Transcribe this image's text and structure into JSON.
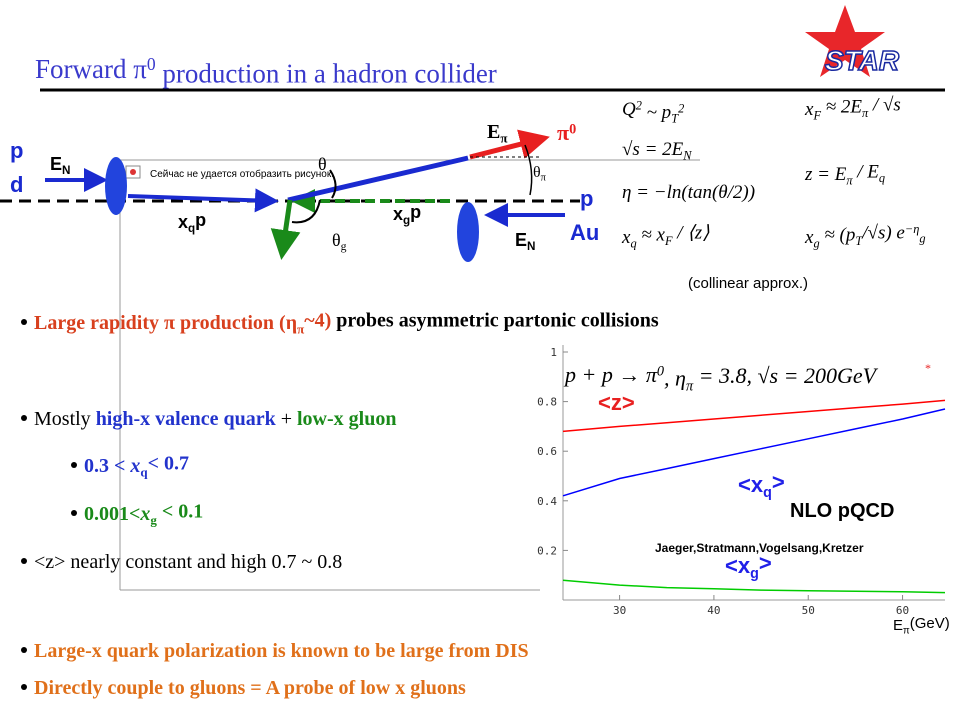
{
  "title": [
    {
      "text": "Forward π"
    },
    {
      "text": "0",
      "sup": true
    },
    {
      "text": " production in a hadron collider"
    }
  ],
  "logo": "STAR",
  "broken_image_text": "Сейчас не удается отобразить рисунок.",
  "diagram": {
    "p_left": "p",
    "d_left": "d",
    "e_n_left": [
      {
        "text": "E"
      },
      {
        "text": "N",
        "sub": true
      }
    ],
    "xq_p": [
      {
        "text": "x"
      },
      {
        "text": "q",
        "sub": true
      },
      {
        "text": "p"
      }
    ],
    "xg_p": [
      {
        "text": "x"
      },
      {
        "text": "g",
        "sub": true
      },
      {
        "text": "p"
      }
    ],
    "e_n_right": [
      {
        "text": "E"
      },
      {
        "text": "N",
        "sub": true
      }
    ],
    "p_right": "p",
    "au_right": "Au",
    "e_pi": [
      {
        "text": "E"
      },
      {
        "text": "π",
        "sub": true
      }
    ],
    "pi0": [
      {
        "text": "π"
      },
      {
        "text": "0",
        "sup": true
      }
    ],
    "theta_pi": [
      {
        "text": "θ"
      },
      {
        "text": "π",
        "sub": true
      }
    ],
    "theta": "θ",
    "theta_g": [
      {
        "text": "θ"
      },
      {
        "text": "g",
        "sub": true
      }
    ]
  },
  "formulas": [
    [
      {
        "text": "Q"
      },
      {
        "text": "2",
        "sup": true
      },
      {
        "text": " ~ p"
      },
      {
        "text": "T",
        "sub": true
      },
      {
        "text": "2",
        "sup": true
      }
    ],
    [
      {
        "text": "x"
      },
      {
        "text": "F",
        "sub": true
      },
      {
        "text": " ≈ 2E"
      },
      {
        "text": "π",
        "sub": true
      },
      {
        "text": " / √s"
      }
    ],
    [
      {
        "text": "√s = 2E"
      },
      {
        "text": "N",
        "sub": true
      }
    ],
    [
      {
        "text": "z = E"
      },
      {
        "text": "π",
        "sub": true
      },
      {
        "text": " / E"
      },
      {
        "text": "q",
        "sub": true
      }
    ],
    [
      {
        "text": "η = −ln(tan(θ/2))"
      }
    ],
    [
      {
        "text": "x"
      },
      {
        "text": "q",
        "sub": true
      },
      {
        "text": " ≈ x"
      },
      {
        "text": "F",
        "sub": true
      },
      {
        "text": " / ⟨z⟩"
      }
    ],
    [
      {
        "text": "x"
      },
      {
        "text": "g",
        "sub": true
      },
      {
        "text": " ≈ (p"
      },
      {
        "text": "T",
        "sub": true
      },
      {
        "text": "/√s) e"
      },
      {
        "text": "−η",
        "sup": true
      },
      {
        "text": "g",
        "sub": true
      }
    ]
  ],
  "collinear_note": "(collinear approx.)",
  "bullets": [
    [
      {
        "text": "Large rapidity π production (η",
        "bold": true,
        "color": "#d8401e"
      },
      {
        "text": "π",
        "sub": true,
        "bold": true,
        "color": "#d8401e"
      },
      {
        "text": "~4)",
        "bold": true,
        "color": "#d8401e"
      },
      {
        "text": " probes asymmetric partonic collisions",
        "bold": true
      }
    ],
    [
      {
        "text": "Mostly "
      },
      {
        "text": "high-x valence quark",
        "bold": true,
        "color": "#2233cc"
      },
      {
        "text": " + "
      },
      {
        "text": "low-x gluon",
        "bold": true,
        "color": "#1a8a1a"
      }
    ],
    [
      {
        "text": "0.3 < ",
        "bold": true,
        "color": "#2233cc"
      },
      {
        "text": "x",
        "bold": true,
        "italic": true,
        "color": "#2233cc"
      },
      {
        "text": "q",
        "sub": true,
        "bold": true,
        "color": "#2233cc"
      },
      {
        "text": "<  0.7",
        "bold": true,
        "color": "#2233cc"
      }
    ],
    [
      {
        "text": "0.001<",
        "bold": true,
        "color": "#1a8a1a"
      },
      {
        "text": "x",
        "bold": true,
        "italic": true,
        "color": "#1a8a1a"
      },
      {
        "text": "g",
        "sub": true,
        "bold": true,
        "color": "#1a8a1a"
      },
      {
        "text": " < 0.1",
        "bold": true,
        "color": "#1a8a1a"
      }
    ],
    [
      {
        "text": "<z> nearly constant and high  0.7 ~ 0.8"
      }
    ],
    [
      {
        "text": "Large-x quark polarization is known to be large from DIS",
        "bold": true,
        "color": "#e0701a"
      }
    ],
    [
      {
        "text": "Directly couple to gluons = A probe of low x gluons",
        "bold": true,
        "color": "#e0701a"
      }
    ]
  ],
  "chart_data": {
    "type": "line",
    "title": [
      {
        "text": "p + p → π"
      },
      {
        "text": "0",
        "sup": true
      },
      {
        "text": ", η"
      },
      {
        "text": "π",
        "sub": true
      },
      {
        "text": " = 3.8, √s = 200GeV"
      }
    ],
    "x_label": [
      {
        "text": "E"
      },
      {
        "text": "π",
        "sub": true
      },
      {
        "text": "(GeV)"
      }
    ],
    "annotations": [
      "NLO pQCD",
      "Jaeger,Stratmann,Vogelsang,Kretzer"
    ],
    "x": [
      24,
      30,
      35,
      40,
      45,
      50,
      55,
      60,
      64.5
    ],
    "series": [
      {
        "label": [
          {
            "text": "<z>"
          }
        ],
        "color": "#ff0000",
        "values": [
          0.68,
          0.7,
          0.715,
          0.73,
          0.745,
          0.76,
          0.775,
          0.79,
          0.805
        ]
      },
      {
        "label": [
          {
            "text": "<x"
          },
          {
            "text": "q",
            "sub": true
          },
          {
            "text": ">"
          }
        ],
        "color": "#0000ff",
        "values": [
          0.42,
          0.49,
          0.53,
          0.57,
          0.61,
          0.65,
          0.69,
          0.73,
          0.77
        ]
      },
      {
        "label": [
          {
            "text": "<x"
          },
          {
            "text": "g",
            "sub": true
          },
          {
            "text": ">"
          }
        ],
        "color": "#00cc00",
        "values": [
          0.08,
          0.06,
          0.05,
          0.045,
          0.04,
          0.037,
          0.035,
          0.033,
          0.03
        ]
      }
    ],
    "xlim": [
      24,
      64.5
    ],
    "ylim": [
      0,
      1
    ],
    "xticks": [
      30,
      40,
      50,
      60
    ],
    "yticks": [
      0.2,
      0.4,
      0.6,
      0.8,
      1
    ]
  }
}
